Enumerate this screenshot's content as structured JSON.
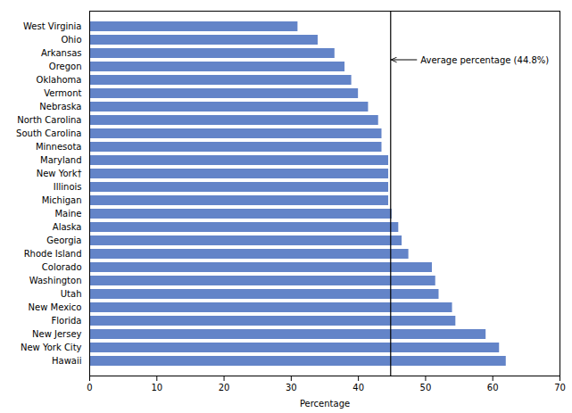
{
  "chart_data": {
    "type": "bar",
    "orientation": "horizontal",
    "categories": [
      "West Virginia",
      "Ohio",
      "Arkansas",
      "Oregon",
      "Oklahoma",
      "Vermont",
      "Nebraska",
      "North Carolina",
      "South Carolina",
      "Minnesota",
      "Maryland",
      "New York†",
      "Illinois",
      "Michigan",
      "Maine",
      "Alaska",
      "Georgia",
      "Rhode Island",
      "Colorado",
      "Washington",
      "Utah",
      "New Mexico",
      "Florida",
      "New Jersey",
      "New York City",
      "Hawaii"
    ],
    "values": [
      31.0,
      34.0,
      36.5,
      38.0,
      39.0,
      40.0,
      41.5,
      43.0,
      43.5,
      43.5,
      44.5,
      44.5,
      44.5,
      44.5,
      45.0,
      46.0,
      46.5,
      47.5,
      51.0,
      51.5,
      52.0,
      54.0,
      54.5,
      59.0,
      61.0,
      62.0
    ],
    "color": "#6384c8",
    "xlabel": "Percentage",
    "xlim": [
      0,
      70
    ],
    "xticks": [
      0,
      10,
      20,
      30,
      40,
      50,
      60,
      70
    ],
    "annotations": [
      {
        "text": "Average percentage (44.8%)",
        "x": 44.8
      }
    ],
    "grid": false
  }
}
